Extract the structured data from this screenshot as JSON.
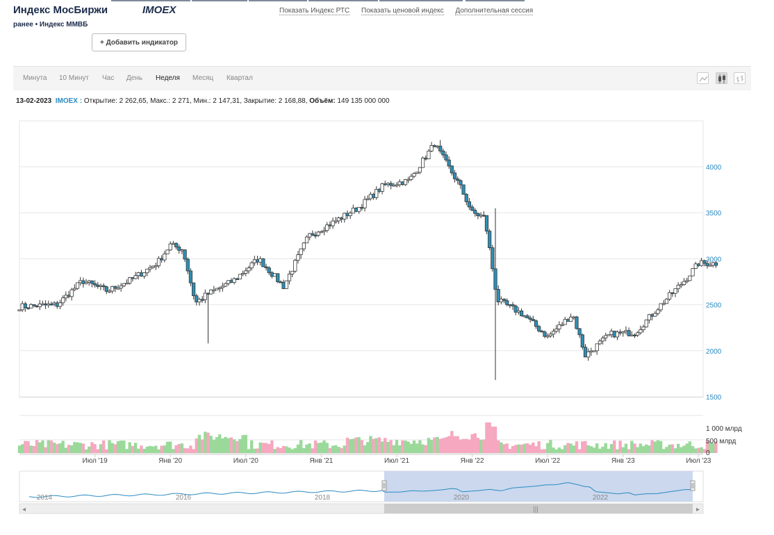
{
  "header": {
    "title": "Индекс МосБиржи",
    "ticker": "IMOEX",
    "subtitle": "ранее • Индекс ММВБ",
    "links": [
      "Показать Индекс РТС",
      "Показать ценовой индекс",
      "Дополнительная сессия"
    ],
    "add_indicator": "+  Добавить индикатор"
  },
  "tabs": [
    "Минута",
    "10 Минут",
    "Час",
    "День",
    "Неделя",
    "Месяц",
    "Квартал"
  ],
  "active_tab": "Неделя",
  "chart_type_icons": [
    "line-chart-icon",
    "candlestick-chart-icon",
    "ohlc-bar-chart-icon"
  ],
  "info": {
    "date": "13-02-2023",
    "ticker": "IMOEX :",
    "text": "Открытие: 2 262,65, Макс.: 2 271, Мин.: 2 147,31, Закрытие: 2 168,88,",
    "volume_label": "Объём:",
    "volume_value": "149 135 000 000"
  },
  "chart_data": {
    "type": "candlestick",
    "price_axis": {
      "ticks": [
        1500,
        2000,
        2500,
        3000,
        3500,
        4000
      ],
      "range": [
        1500,
        4300
      ]
    },
    "volume_axis": {
      "ticks": [
        "0",
        "500 млрд",
        "1 000 млрд"
      ],
      "range_mlrd": [
        0,
        1200
      ]
    },
    "x_ticks": [
      "Июл '19",
      "Янв '20",
      "Июл '20",
      "Янв '21",
      "Июл '21",
      "Янв '22",
      "Июл '22",
      "Янв '23",
      "Июл '23"
    ],
    "approx_close_path": [
      [
        "2019-01",
        2480
      ],
      [
        "2019-04",
        2500
      ],
      [
        "2019-06",
        2760
      ],
      [
        "2019-08",
        2650
      ],
      [
        "2019-10",
        2780
      ],
      [
        "2019-12",
        2960
      ],
      [
        "2020-01",
        3150
      ],
      [
        "2020-02",
        3100
      ],
      [
        "2020-03",
        2520
      ],
      [
        "2020-04",
        2620
      ],
      [
        "2020-06",
        2760
      ],
      [
        "2020-08",
        3000
      ],
      [
        "2020-10",
        2700
      ],
      [
        "2020-12",
        3250
      ],
      [
        "2021-02",
        3400
      ],
      [
        "2021-04",
        3560
      ],
      [
        "2021-06",
        3800
      ],
      [
        "2021-08",
        3850
      ],
      [
        "2021-10",
        4250
      ],
      [
        "2021-12",
        3800
      ],
      [
        "2022-01",
        3500
      ],
      [
        "2022-02",
        3450
      ],
      [
        "2022-03",
        2550
      ],
      [
        "2022-05",
        2400
      ],
      [
        "2022-07",
        2150
      ],
      [
        "2022-09",
        2400
      ],
      [
        "2022-10",
        1950
      ],
      [
        "2022-12",
        2180
      ],
      [
        "2023-02",
        2200
      ],
      [
        "2023-04",
        2500
      ],
      [
        "2023-06",
        2780
      ],
      [
        "2023-07",
        2950
      ]
    ],
    "key_events": {
      "max": 4290,
      "crash_low": 1681
    },
    "navigator": {
      "labels": [
        "2014",
        "2016",
        "2018",
        "2020",
        "2022"
      ],
      "selected_from": "2019",
      "selected_to": "2023"
    }
  },
  "colors": {
    "down_fill": "#2e8fb5",
    "up_fill": "#ffffff",
    "vol_up": "#9ad99a",
    "vol_down": "#f5a8c0",
    "nav_fill": "#cbd8ee",
    "accent": "#2a8ac1"
  }
}
